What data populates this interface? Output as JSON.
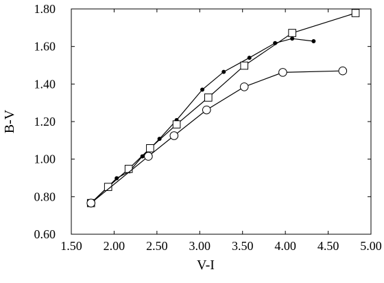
{
  "chart_data": {
    "type": "line",
    "title": "",
    "xlabel": "V-I",
    "ylabel": "B-V",
    "xlim": [
      1.5,
      5.0
    ],
    "ylim": [
      0.6,
      1.8
    ],
    "x_ticks": [
      "1.50",
      "2.00",
      "2.50",
      "3.00",
      "3.50",
      "4.00",
      "4.50",
      "5.00"
    ],
    "y_ticks": [
      "0.60",
      "0.80",
      "1.00",
      "1.20",
      "1.40",
      "1.60",
      "1.80"
    ],
    "grid": false,
    "legend": "none",
    "series": [
      {
        "marker": "filled-circle",
        "color": "#000000",
        "points": [
          {
            "x": 1.73,
            "y": 0.766
          },
          {
            "x": 2.03,
            "y": 0.898
          },
          {
            "x": 2.18,
            "y": 0.935
          },
          {
            "x": 2.33,
            "y": 1.015
          },
          {
            "x": 2.53,
            "y": 1.108
          },
          {
            "x": 2.73,
            "y": 1.208
          },
          {
            "x": 3.03,
            "y": 1.37
          },
          {
            "x": 3.28,
            "y": 1.465
          },
          {
            "x": 3.58,
            "y": 1.54
          },
          {
            "x": 3.88,
            "y": 1.618
          },
          {
            "x": 4.08,
            "y": 1.642
          },
          {
            "x": 4.33,
            "y": 1.628
          }
        ]
      },
      {
        "marker": "open-square",
        "color": "#000000",
        "points": [
          {
            "x": 1.73,
            "y": 0.766
          },
          {
            "x": 1.93,
            "y": 0.852
          },
          {
            "x": 2.17,
            "y": 0.948
          },
          {
            "x": 2.42,
            "y": 1.058
          },
          {
            "x": 2.73,
            "y": 1.185
          },
          {
            "x": 3.1,
            "y": 1.328
          },
          {
            "x": 3.52,
            "y": 1.498
          },
          {
            "x": 4.08,
            "y": 1.672
          },
          {
            "x": 4.82,
            "y": 1.778
          }
        ]
      },
      {
        "marker": "open-circle",
        "color": "#000000",
        "points": [
          {
            "x": 1.73,
            "y": 0.766
          },
          {
            "x": 2.4,
            "y": 1.015
          },
          {
            "x": 2.7,
            "y": 1.125
          },
          {
            "x": 3.08,
            "y": 1.262
          },
          {
            "x": 3.52,
            "y": 1.385
          },
          {
            "x": 3.97,
            "y": 1.462
          },
          {
            "x": 4.67,
            "y": 1.47
          }
        ]
      }
    ]
  }
}
